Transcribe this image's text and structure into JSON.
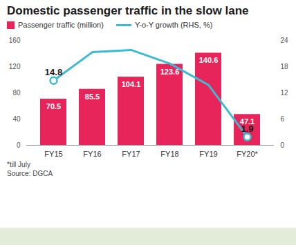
{
  "chart_data": {
    "type": "bar",
    "title": "Domestic passenger traffic in the slow lane",
    "categories": [
      "FY15",
      "FY16",
      "FY17",
      "FY18",
      "FY19",
      "FY20*"
    ],
    "series": [
      {
        "name": "Passenger traffic (million)",
        "type": "bar",
        "color": "#e8255a",
        "values": [
          70.5,
          85.5,
          104.1,
          123.6,
          140.6,
          47.1
        ]
      },
      {
        "name": "Y-o-Y growth (RHS, %)",
        "type": "line",
        "axis": "y2",
        "color": "#3dbad0",
        "marker": "circle",
        "values": [
          14.8,
          21.3,
          21.8,
          18.7,
          13.8,
          1.9
        ],
        "value_labels": [
          "14.8",
          null,
          null,
          null,
          null,
          "1.9"
        ]
      }
    ],
    "ylim": [
      0,
      160
    ],
    "yticks": [
      0,
      40,
      80,
      120,
      160
    ],
    "y2lim": [
      0,
      24
    ],
    "y2ticks": [
      0,
      6,
      12,
      18,
      24
    ],
    "data_labels": true,
    "grid": false,
    "legend": "top left",
    "notes": [
      "*till July"
    ],
    "source": "Source: DGCA"
  }
}
